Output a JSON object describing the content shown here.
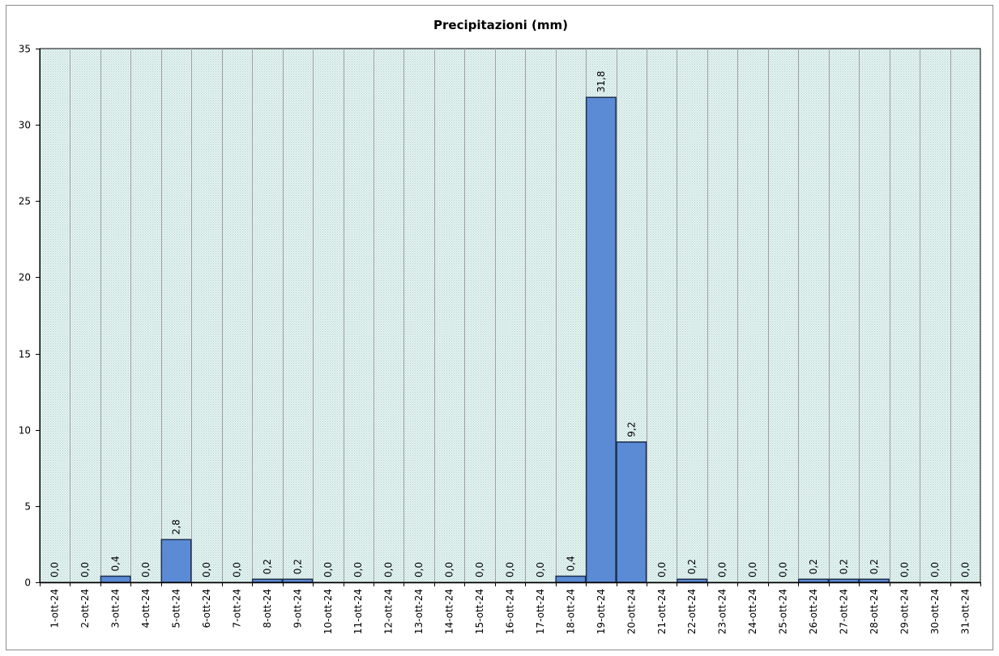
{
  "chart_data": {
    "type": "bar",
    "title": "Precipitazioni  (mm)",
    "xlabel": "",
    "ylabel": "",
    "ylim": [
      0,
      35
    ],
    "yticks": [
      "0",
      "5",
      "10",
      "15",
      "20",
      "25",
      "30",
      "35"
    ],
    "grid": "vertical",
    "legend": "none",
    "colors": {
      "bar_fill": "#5b8bd5",
      "bar_stroke": "#1f2f4f",
      "plot_bg": "#d9ece9",
      "grid": "#a0a0a0",
      "axis": "#000000"
    },
    "categories": [
      "1-ott-24",
      "2-ott-24",
      "3-ott-24",
      "4-ott-24",
      "5-ott-24",
      "6-ott-24",
      "7-ott-24",
      "8-ott-24",
      "9-ott-24",
      "10-ott-24",
      "11-ott-24",
      "12-ott-24",
      "13-ott-24",
      "14-ott-24",
      "15-ott-24",
      "16-ott-24",
      "17-ott-24",
      "18-ott-24",
      "19-ott-24",
      "20-ott-24",
      "21-ott-24",
      "22-ott-24",
      "23-ott-24",
      "24-ott-24",
      "25-ott-24",
      "26-ott-24",
      "27-ott-24",
      "28-ott-24",
      "29-ott-24",
      "30-ott-24",
      "31-ott-24"
    ],
    "values": [
      0,
      0,
      0.4,
      0,
      2.8,
      0,
      0,
      0.2,
      0.2,
      0,
      0,
      0,
      0,
      0,
      0,
      0,
      0,
      0.4,
      31.8,
      9.2,
      0,
      0.2,
      0,
      0,
      0,
      0.2,
      0.2,
      0.2,
      0,
      0,
      0
    ],
    "data_labels": [
      "0,0",
      "0,0",
      "0,4",
      "0,0",
      "2,8",
      "0,0",
      "0,0",
      "0,2",
      "0,2",
      "0,0",
      "0,0",
      "0,0",
      "0,0",
      "0,0",
      "0,0",
      "0,0",
      "0,0",
      "0,4",
      "31,8",
      "9,2",
      "0,0",
      "0,2",
      "0,0",
      "0,0",
      "0,0",
      "0,2",
      "0,2",
      "0,2",
      "0,0",
      "0,0",
      "0,0"
    ]
  }
}
